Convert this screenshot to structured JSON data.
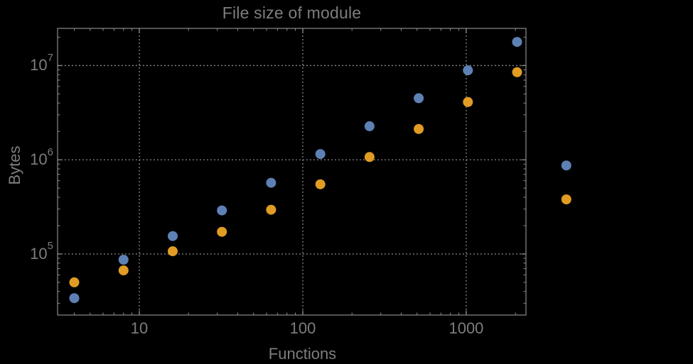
{
  "page": {
    "background_color": "#000000",
    "text_color": "#7d7d7d",
    "frame_color": "#8a8a8a",
    "grid_color": "#8a8a8a"
  },
  "chart_data": {
    "type": "scatter",
    "title": "File size of module",
    "xlabel": "Functions",
    "ylabel": "Bytes",
    "x_scale": "log",
    "y_scale": "log",
    "xlim": [
      3.16,
      2320
    ],
    "ylim": [
      22500,
      24800000
    ],
    "grid": {
      "style": "dotted",
      "x_values": [
        10,
        100,
        1000
      ],
      "y_values": [
        100000,
        1000000,
        10000000
      ]
    },
    "x_major_ticks": [
      {
        "value": 10,
        "label": "10"
      },
      {
        "value": 100,
        "label": "100"
      },
      {
        "value": 1000,
        "label": "1000"
      }
    ],
    "y_major_ticks": [
      {
        "value": 100000,
        "base": "10",
        "exp": "5"
      },
      {
        "value": 1000000,
        "base": "10",
        "exp": "6"
      },
      {
        "value": 10000000,
        "base": "10",
        "exp": "7"
      }
    ],
    "marker": {
      "shape": "circle",
      "radius_px": 7
    },
    "legend_shown": false,
    "clipping": false,
    "series": [
      {
        "name": "blue",
        "color": "#5E81B5",
        "points": [
          [
            4,
            34000
          ],
          [
            8,
            87000
          ],
          [
            16,
            155000
          ],
          [
            32,
            290000
          ],
          [
            64,
            570000
          ],
          [
            128,
            1150000
          ],
          [
            256,
            2270000
          ],
          [
            512,
            4500000
          ],
          [
            1024,
            8900000
          ],
          [
            2048,
            17800000
          ],
          [
            4096,
            870000
          ]
        ]
      },
      {
        "name": "orange",
        "color": "#E19C24",
        "points": [
          [
            4,
            50000
          ],
          [
            8,
            67000
          ],
          [
            16,
            107000
          ],
          [
            32,
            172000
          ],
          [
            64,
            295000
          ],
          [
            128,
            550000
          ],
          [
            256,
            1070000
          ],
          [
            512,
            2120000
          ],
          [
            1024,
            4100000
          ],
          [
            2048,
            8500000
          ],
          [
            4096,
            380000
          ]
        ]
      }
    ]
  }
}
